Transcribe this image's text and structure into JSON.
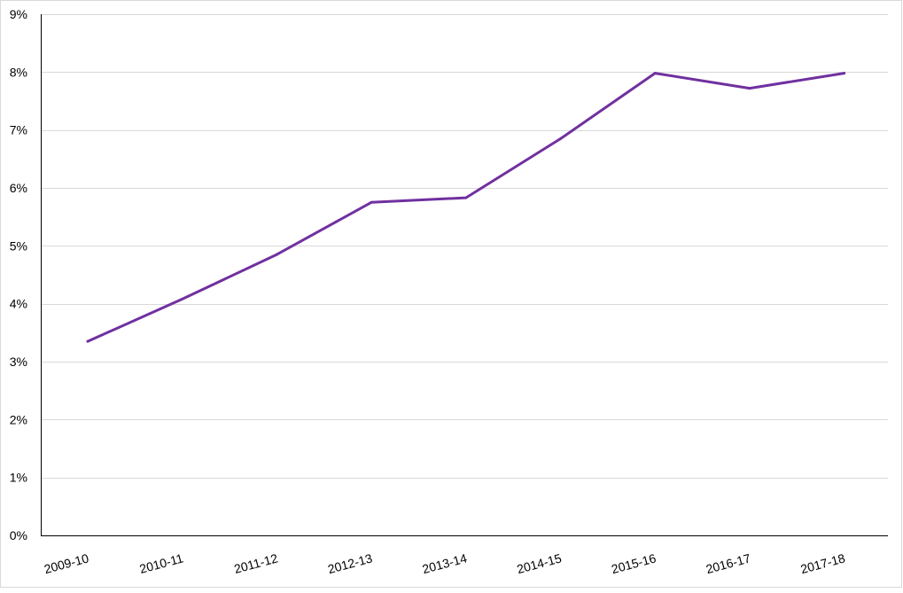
{
  "chart_data": {
    "type": "line",
    "title": "",
    "xlabel": "",
    "ylabel": "",
    "categories": [
      "2009-10",
      "2010-11",
      "2011-12",
      "2012-13",
      "2013-14",
      "2014-15",
      "2015-16",
      "2016-17",
      "2017-18"
    ],
    "series": [
      {
        "values": [
          3.35,
          4.08,
          4.85,
          5.75,
          5.83,
          6.85,
          7.98,
          7.72,
          7.98
        ],
        "color": "#7030a0"
      }
    ],
    "ylim": [
      0,
      9
    ],
    "y_ticks": [
      0,
      1,
      2,
      3,
      4,
      5,
      6,
      7,
      8,
      9
    ],
    "y_tick_labels": [
      "0%",
      "1%",
      "2%",
      "3%",
      "4%",
      "5%",
      "6%",
      "7%",
      "8%",
      "9%"
    ],
    "x_tick_rotation_deg": -15,
    "grid": true,
    "legend": "none"
  }
}
